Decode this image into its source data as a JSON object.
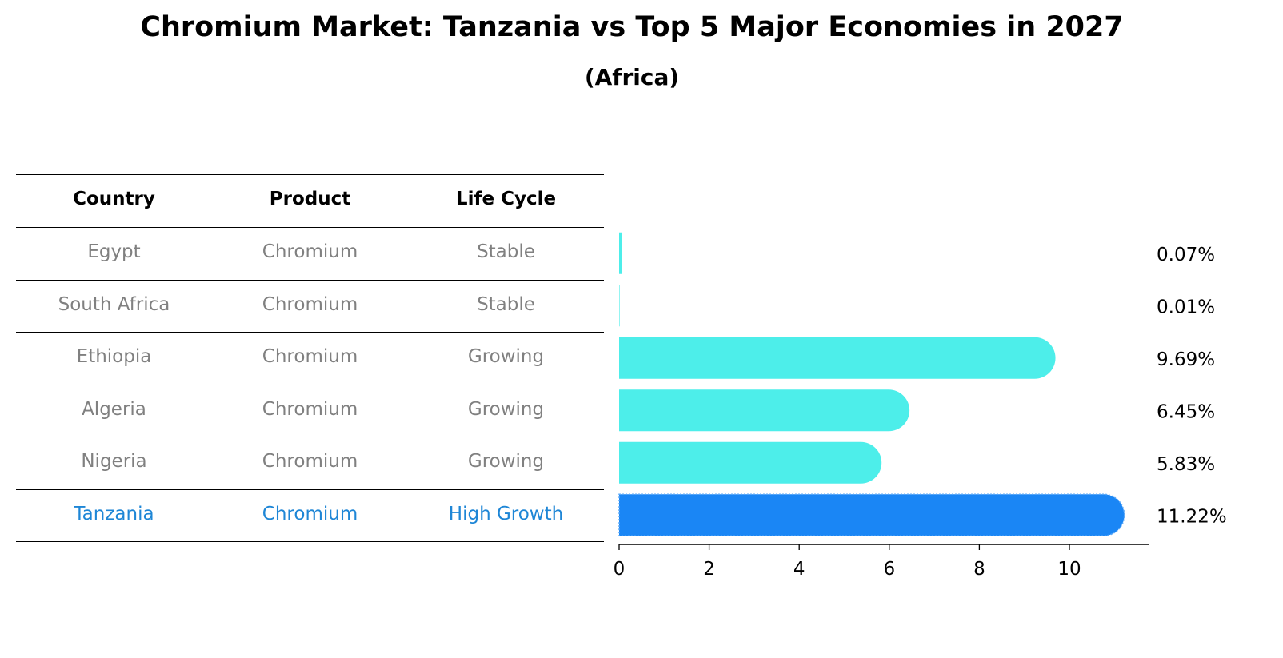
{
  "title": "Chromium Market: Tanzania vs Top 5 Major Economies in 2027",
  "subtitle": "(Africa)",
  "table": {
    "headers": [
      "Country",
      "Product",
      "Life Cycle"
    ],
    "rows": [
      {
        "country": "Egypt",
        "product": "Chromium",
        "life_cycle": "Stable",
        "highlight": false
      },
      {
        "country": "South Africa",
        "product": "Chromium",
        "life_cycle": "Stable",
        "highlight": false
      },
      {
        "country": "Ethiopia",
        "product": "Chromium",
        "life_cycle": "Growing",
        "highlight": false
      },
      {
        "country": "Algeria",
        "product": "Chromium",
        "life_cycle": "Growing",
        "highlight": false
      },
      {
        "country": "Nigeria",
        "product": "Chromium",
        "life_cycle": "Growing",
        "highlight": false
      },
      {
        "country": "Tanzania",
        "product": "Chromium",
        "life_cycle": "High Growth",
        "highlight": true
      }
    ]
  },
  "chart_data": {
    "type": "bar",
    "orientation": "horizontal",
    "title": "Chromium Market: Tanzania vs Top 5 Major Economies in 2027",
    "subtitle": "(Africa)",
    "categories": [
      "Egypt",
      "South Africa",
      "Ethiopia",
      "Algeria",
      "Nigeria",
      "Tanzania"
    ],
    "values": [
      0.07,
      0.01,
      9.69,
      6.45,
      5.83,
      11.22
    ],
    "value_labels": [
      "0.07%",
      "0.01%",
      "9.69%",
      "6.45%",
      "5.83%",
      "11.22%"
    ],
    "xlim": [
      0,
      11.78
    ],
    "xticks": [
      0,
      2,
      4,
      6,
      8,
      10
    ],
    "xlabel": "",
    "ylabel": "",
    "grid": false,
    "colors": {
      "default": "#4deeea",
      "highlight": "#1a86f5"
    },
    "highlight_category": "Tanzania"
  }
}
